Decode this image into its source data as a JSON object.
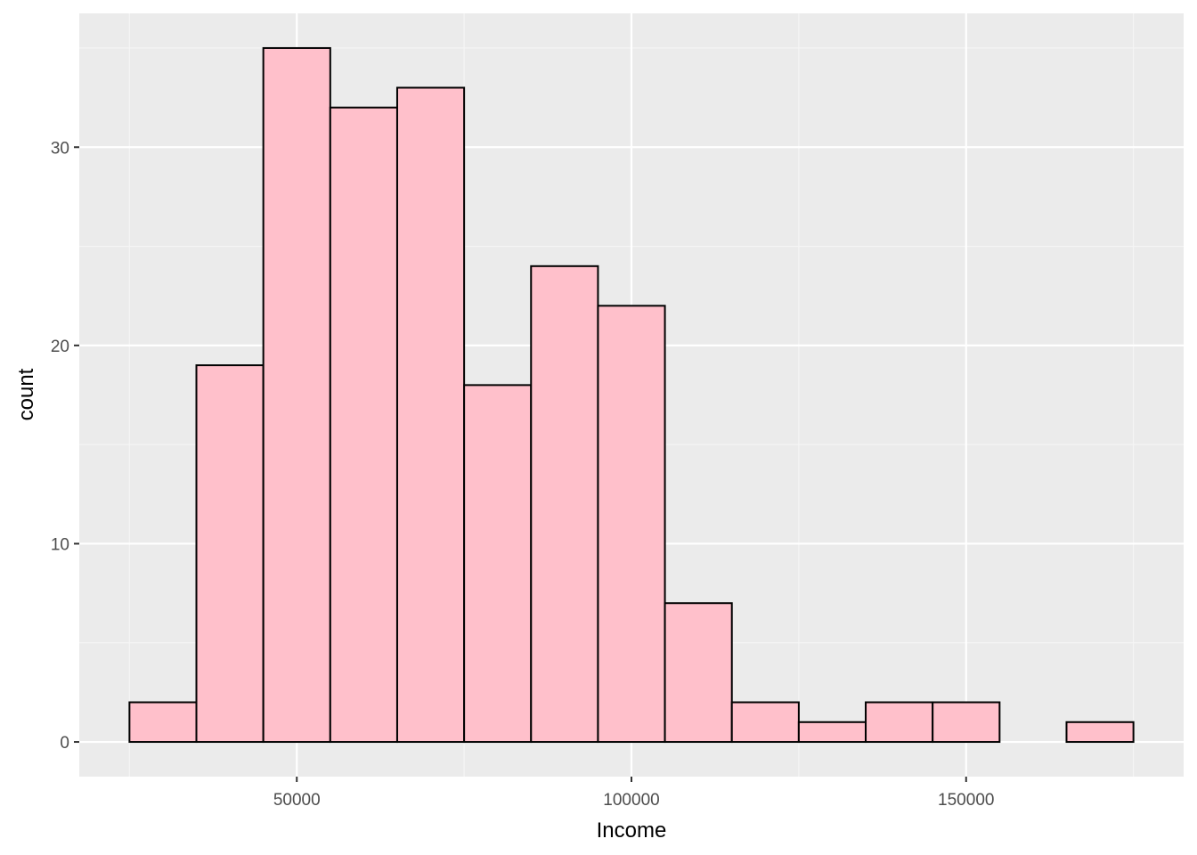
{
  "chart_data": {
    "type": "bar",
    "subtype": "histogram",
    "xlabel": "Income",
    "ylabel": "count",
    "bin_width": 10000,
    "bins": [
      {
        "x_start": 25000,
        "x_end": 35000,
        "count": 2
      },
      {
        "x_start": 35000,
        "x_end": 45000,
        "count": 19
      },
      {
        "x_start": 45000,
        "x_end": 55000,
        "count": 35
      },
      {
        "x_start": 55000,
        "x_end": 65000,
        "count": 32
      },
      {
        "x_start": 65000,
        "x_end": 75000,
        "count": 33
      },
      {
        "x_start": 75000,
        "x_end": 85000,
        "count": 18
      },
      {
        "x_start": 85000,
        "x_end": 95000,
        "count": 24
      },
      {
        "x_start": 95000,
        "x_end": 105000,
        "count": 22
      },
      {
        "x_start": 105000,
        "x_end": 115000,
        "count": 7
      },
      {
        "x_start": 115000,
        "x_end": 125000,
        "count": 2
      },
      {
        "x_start": 125000,
        "x_end": 135000,
        "count": 1
      },
      {
        "x_start": 135000,
        "x_end": 145000,
        "count": 2
      },
      {
        "x_start": 145000,
        "x_end": 155000,
        "count": 2
      },
      {
        "x_start": 155000,
        "x_end": 165000,
        "count": 0
      },
      {
        "x_start": 165000,
        "x_end": 175000,
        "count": 1
      }
    ],
    "x_ticks": [
      50000,
      100000,
      150000
    ],
    "x_tick_labels": [
      "50000",
      "100000",
      "150000"
    ],
    "y_ticks": [
      0,
      10,
      20,
      30
    ],
    "y_tick_labels": [
      "0",
      "10",
      "20",
      "30"
    ],
    "xlim": [
      17500,
      182500
    ],
    "ylim": [
      -1.75,
      36.75
    ],
    "grid": true,
    "colors": {
      "bar_fill": "#ffc0cb",
      "bar_outline": "#000000",
      "panel_background": "#ebebeb",
      "grid_major": "#ffffff",
      "grid_minor": "#f5f5f5"
    }
  }
}
